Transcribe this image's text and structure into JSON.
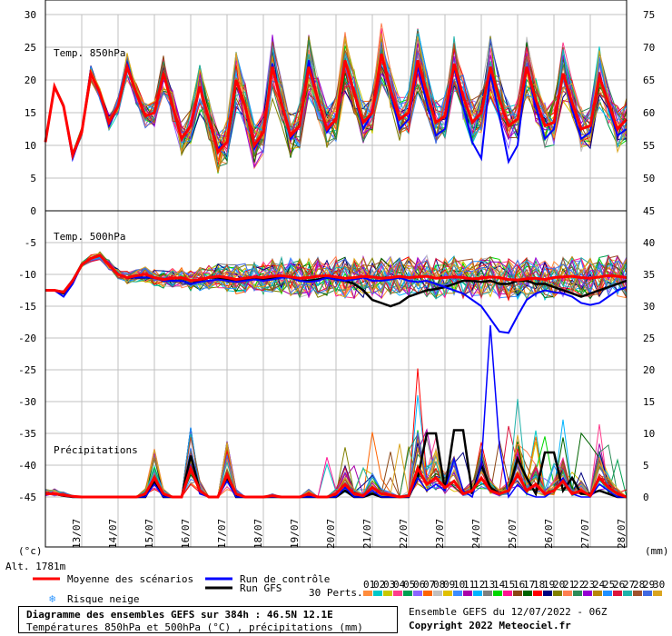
{
  "chart_data": {
    "type": "line",
    "title": "Diagramme des ensembles GEFS sur 384h : 46.5N 12.1E",
    "subtitle": "Températures 850hPa et 500hPa (°C) , précipitations (mm)",
    "altitude": "Alt. 1781m",
    "unit_left": "(°c)",
    "unit_right": "(mm)",
    "dates": [
      "13/07",
      "14/07",
      "15/07",
      "16/07",
      "17/07",
      "18/07",
      "19/07",
      "20/07",
      "21/07",
      "22/07",
      "23/07",
      "24/07",
      "25/07",
      "26/07",
      "27/07",
      "28/07"
    ],
    "panel_850": {
      "label": "Temp. 850hPa",
      "left_ticks": [
        "30",
        "25",
        "20",
        "15",
        "10",
        "5",
        "0"
      ],
      "right_ticks": [
        "75",
        "70",
        "65",
        "60",
        "55",
        "50"
      ],
      "ylim": [
        0,
        30
      ],
      "mean": [
        10.5,
        19.0,
        16.0,
        8.5,
        12.0,
        21.0,
        18.0,
        13.5,
        16.0,
        22.0,
        18.0,
        14.5,
        15.0,
        21.0,
        16.0,
        11.0,
        13.0,
        19.0,
        14.0,
        9.0,
        10.5,
        20.0,
        16.0,
        10.0,
        12.0,
        22.0,
        16.5,
        11.5,
        13.0,
        22.0,
        17.0,
        12.5,
        14.0,
        23.0,
        18.0,
        13.5,
        15.0,
        24.0,
        18.5,
        14.0,
        15.0,
        23.0,
        18.0,
        13.5,
        14.5,
        22.5,
        17.5,
        13.5,
        15.0,
        22.0,
        17.0,
        13.0,
        14.0,
        22.0,
        17.0,
        13.0,
        13.5,
        21.0,
        16.5,
        12.5,
        13.0,
        20.5,
        16.5,
        12.5,
        14.0
      ],
      "control": [
        10.5,
        19.0,
        16.0,
        8.0,
        12.0,
        21.0,
        18.0,
        13.0,
        16.0,
        22.5,
        18.0,
        14.5,
        15.0,
        21.0,
        16.0,
        11.0,
        13.0,
        19.0,
        14.0,
        9.5,
        10.5,
        20.0,
        16.0,
        9.5,
        12.0,
        22.5,
        16.5,
        11.0,
        13.0,
        23.0,
        17.0,
        12.0,
        14.0,
        23.0,
        18.0,
        12.5,
        15.0,
        24.0,
        18.0,
        12.5,
        14.0,
        22.0,
        16.5,
        11.5,
        12.5,
        22.0,
        16.0,
        10.5,
        8.0,
        21.0,
        14.5,
        7.5,
        10.0,
        22.0,
        16.0,
        11.0,
        12.5,
        21.0,
        15.5,
        11.0,
        12.0,
        21.0,
        16.0,
        11.5,
        12.5
      ]
    },
    "panel_500": {
      "label": "Temp. 500hPa",
      "precip_label": "Précipitations",
      "left_ticks": [
        "-5",
        "-10",
        "-15",
        "-20",
        "-25",
        "-30",
        "-35",
        "-40",
        "-45"
      ],
      "right_ticks": [
        "45",
        "40",
        "35",
        "30",
        "25",
        "20",
        "15",
        "10",
        "5",
        "0"
      ],
      "ylim": [
        -50,
        0
      ],
      "precip_ylim": [
        0,
        45
      ],
      "mean": [
        -12.5,
        -12.5,
        -12.8,
        -11.0,
        -8.5,
        -7.5,
        -7.0,
        -8.5,
        -10.0,
        -10.5,
        -10.2,
        -10.0,
        -10.5,
        -10.8,
        -10.6,
        -10.5,
        -11.0,
        -10.8,
        -10.5,
        -10.3,
        -10.5,
        -10.8,
        -10.6,
        -10.4,
        -10.5,
        -10.3,
        -10.2,
        -10.4,
        -10.6,
        -10.5,
        -10.3,
        -10.2,
        -10.4,
        -10.6,
        -10.5,
        -10.3,
        -10.4,
        -10.6,
        -10.5,
        -10.3,
        -10.5,
        -10.4,
        -10.3,
        -10.6,
        -10.5,
        -10.4,
        -10.5,
        -10.7,
        -10.6,
        -10.4,
        -10.5,
        -10.8,
        -10.9,
        -10.7,
        -10.6,
        -10.8,
        -10.5,
        -10.4,
        -10.3,
        -10.5,
        -10.6,
        -10.4,
        -10.2,
        -10.3,
        -10.5
      ],
      "control": [
        -12.5,
        -12.5,
        -13.5,
        -11.5,
        -8.5,
        -7.5,
        -7.0,
        -8.5,
        -10.0,
        -10.5,
        -10.5,
        -10.5,
        -10.5,
        -11.0,
        -11.0,
        -11.0,
        -11.5,
        -11.2,
        -11.0,
        -10.8,
        -11.0,
        -11.2,
        -11.0,
        -10.8,
        -11.0,
        -10.8,
        -10.5,
        -10.5,
        -11.0,
        -11.2,
        -11.0,
        -10.5,
        -10.8,
        -11.0,
        -10.8,
        -10.5,
        -11.0,
        -11.0,
        -10.8,
        -10.5,
        -11.0,
        -11.2,
        -11.0,
        -11.5,
        -12.0,
        -12.5,
        -13.0,
        -14.0,
        -15.0,
        -17.0,
        -19.0,
        -19.2,
        -16.5,
        -14.0,
        -13.0,
        -12.5,
        -12.8,
        -13.0,
        -13.5,
        -14.5,
        -14.8,
        -14.5,
        -13.5,
        -12.5,
        -12.0
      ],
      "gfs": [
        -12.5,
        -12.5,
        -13.0,
        -11.0,
        -8.5,
        -7.5,
        -7.0,
        -8.5,
        -10.0,
        -10.5,
        -10.5,
        -10.5,
        -10.5,
        -11.0,
        -11.0,
        -11.0,
        -11.5,
        -11.0,
        -10.5,
        -10.5,
        -10.8,
        -11.0,
        -10.8,
        -10.5,
        -10.8,
        -10.5,
        -10.3,
        -10.5,
        -11.0,
        -11.0,
        -10.8,
        -10.5,
        -10.8,
        -11.0,
        -11.5,
        -12.5,
        -14.0,
        -14.5,
        -15.0,
        -14.5,
        -13.5,
        -13.0,
        -12.5,
        -12.3,
        -12.0,
        -11.5,
        -11.0,
        -11.0,
        -11.2,
        -11.0,
        -11.5,
        -11.5,
        -11.0,
        -11.0,
        -11.5,
        -11.5,
        -12.0,
        -12.5,
        -13.0,
        -13.5,
        -13.0,
        -12.5,
        -12.0,
        -11.5,
        -11.0
      ],
      "precip_mean": [
        0.5,
        0.5,
        0.3,
        0.1,
        0.0,
        0.0,
        0.0,
        0.0,
        0.0,
        0.0,
        0.0,
        0.5,
        3.0,
        0.5,
        0.0,
        0.0,
        4.5,
        1.0,
        0.0,
        0.0,
        3.5,
        0.5,
        0.0,
        0.0,
        0.0,
        0.2,
        0.0,
        0.0,
        0.0,
        0.5,
        0.0,
        0.0,
        0.5,
        2.0,
        0.5,
        0.2,
        1.5,
        0.5,
        0.3,
        0.0,
        0.2,
        4.5,
        2.0,
        3.0,
        1.5,
        2.5,
        0.5,
        1.0,
        3.0,
        1.0,
        0.5,
        1.0,
        3.5,
        1.0,
        2.0,
        0.5,
        1.0,
        2.5,
        0.5,
        1.0,
        0.2,
        3.0,
        1.5,
        0.5,
        0.0
      ],
      "precip_control": [
        0.5,
        0.5,
        0.2,
        0.0,
        0.0,
        0.0,
        0.0,
        0.0,
        0.0,
        0.0,
        0.0,
        0.0,
        2.0,
        0.0,
        0.0,
        0.0,
        5.0,
        0.5,
        0.0,
        0.0,
        2.5,
        0.0,
        0.0,
        0.0,
        0.0,
        0.0,
        0.0,
        0.0,
        0.0,
        0.0,
        0.0,
        0.0,
        0.0,
        1.5,
        0.0,
        0.0,
        1.0,
        0.0,
        0.0,
        0.0,
        0.0,
        3.0,
        1.0,
        2.0,
        1.0,
        6.0,
        1.0,
        0.0,
        5.0,
        27.0,
        8.0,
        0.0,
        2.0,
        0.5,
        0.0,
        0.0,
        1.0,
        3.0,
        0.5,
        0.0,
        0.0,
        2.0,
        1.0,
        0.0,
        0.0
      ],
      "precip_gfs": [
        0.5,
        0.5,
        0.2,
        0.0,
        0.0,
        0.0,
        0.0,
        0.0,
        0.0,
        0.0,
        0.0,
        0.0,
        2.5,
        0.0,
        0.0,
        0.0,
        6.5,
        1.0,
        0.0,
        0.0,
        3.0,
        0.0,
        0.0,
        0.0,
        0.0,
        0.0,
        0.0,
        0.0,
        0.0,
        0.0,
        0.0,
        0.0,
        0.0,
        1.0,
        0.0,
        0.0,
        0.5,
        0.0,
        0.0,
        0.0,
        0.0,
        3.0,
        10.0,
        10.0,
        1.0,
        10.5,
        10.5,
        0.5,
        5.0,
        1.5,
        0.5,
        1.0,
        6.0,
        3.0,
        0.5,
        7.0,
        7.0,
        1.0,
        3.0,
        0.5,
        0.5,
        1.0,
        0.5,
        0.0,
        0.0
      ]
    },
    "legend": {
      "mean": "Moyenne des scénarios",
      "control": "Run de contrôle",
      "gfs": "Run GFS",
      "snow": "Risque neige",
      "perts": "30 Perts.",
      "pert_numbers": [
        "01",
        "02",
        "03",
        "04",
        "05",
        "06",
        "07",
        "08",
        "09",
        "10",
        "11",
        "12",
        "13",
        "14",
        "15",
        "16",
        "17",
        "18",
        "19",
        "20",
        "21",
        "22",
        "23",
        "24",
        "25",
        "26",
        "27",
        "28",
        "29",
        "30"
      ],
      "pert_colors": [
        "#ff8c3c",
        "#00c8c8",
        "#c8c800",
        "#ff3c8c",
        "#00a050",
        "#8c64ff",
        "#ff6400",
        "#c0c0c0",
        "#e0c000",
        "#3c8cff",
        "#aa00aa",
        "#00b4ff",
        "#7f7f7f",
        "#00d700",
        "#ff1493",
        "#8b4513",
        "#006400",
        "#ff0000",
        "#000080",
        "#808000",
        "#ff7f50",
        "#2e8b57",
        "#9400d3",
        "#b8860b",
        "#1e90ff",
        "#dc143c",
        "#20b2aa",
        "#a0522d",
        "#4169e1",
        "#daa520"
      ],
      "mean_color": "#ff0000",
      "control_color": "#0000ff",
      "gfs_color": "#000000",
      "snow_color": "#3399ff"
    },
    "footer": {
      "line1": "Diagramme des ensembles GEFS sur 384h : 46.5N 12.1E",
      "line2": "Températures 850hPa et 500hPa (°C) , précipitations (mm)",
      "run": "Ensemble GEFS du 12/07/2022 - 06Z",
      "copyright": "Copyright 2022 Meteociel.fr"
    }
  }
}
